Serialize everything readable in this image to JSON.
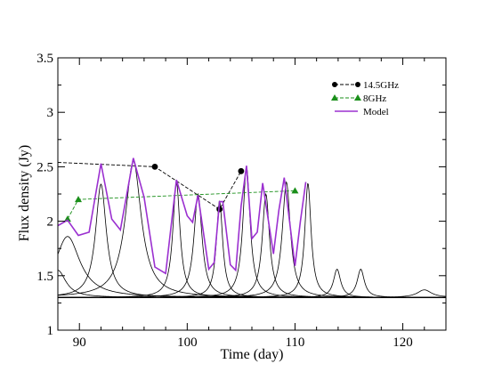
{
  "chart_data": {
    "type": "line",
    "title": "",
    "xlabel": "Time (day)",
    "ylabel": "Flux density (Jy)",
    "xlim": [
      88,
      124
    ],
    "ylim": [
      1,
      3.5
    ],
    "x_ticks": [
      90,
      100,
      110,
      120
    ],
    "y_ticks": [
      1,
      1.5,
      2,
      2.5,
      3,
      3.5
    ],
    "x_tick_labels": [
      "90",
      "100",
      "110",
      "120"
    ],
    "y_tick_labels": [
      "1",
      "1.5",
      "2",
      "2.5",
      "3",
      "3.5"
    ],
    "grid": false,
    "legend_position": "top-right",
    "baseline": 1.3,
    "series": [
      {
        "name": "14.5GHz",
        "color": "#000000",
        "marker": "circle",
        "line_style": "dashed",
        "x": [
          88,
          97,
          103,
          105
        ],
        "y": [
          2.54,
          2.5,
          2.11,
          2.46
        ],
        "marked": [
          false,
          true,
          true,
          true
        ]
      },
      {
        "name": "8GHz",
        "color": "#1a8f1a",
        "marker": "triangle",
        "line_style": "dashed",
        "x": [
          88.9,
          89.9,
          110
        ],
        "y": [
          2.02,
          2.2,
          2.28
        ],
        "marked": [
          true,
          true,
          true
        ]
      },
      {
        "name": "Model",
        "color": "#9b30d0",
        "marker": "none",
        "line_style": "solid",
        "x": [
          88,
          88.9,
          89.9,
          90.9,
          92,
          93,
          93.8,
          95,
          96,
          97,
          98,
          99,
          100,
          100.5,
          101,
          102,
          102.5,
          103,
          103.3,
          104,
          104.5,
          105,
          105.5,
          106,
          106.5,
          107,
          108,
          108.5,
          109,
          110,
          110.5,
          111
        ],
        "y": [
          1.96,
          2.01,
          1.87,
          1.9,
          2.53,
          2.02,
          1.92,
          2.58,
          2.22,
          1.58,
          1.52,
          2.38,
          2.05,
          1.99,
          2.24,
          1.56,
          1.62,
          2.18,
          2.18,
          1.6,
          1.55,
          2.14,
          2.51,
          1.84,
          1.9,
          2.35,
          1.7,
          2.1,
          2.4,
          1.59,
          2.0,
          2.36
        ]
      }
    ],
    "components": [
      {
        "center": 88.0,
        "peak": 1.55,
        "width": 0.9
      },
      {
        "center": 88.9,
        "peak": 1.86,
        "width": 1.4
      },
      {
        "center": 92.0,
        "peak": 2.34,
        "width": 0.6
      },
      {
        "center": 95.0,
        "peak": 2.55,
        "width": 0.9
      },
      {
        "center": 99.0,
        "peak": 2.36,
        "width": 0.4
      },
      {
        "center": 101.0,
        "peak": 2.25,
        "width": 0.45
      },
      {
        "center": 103.0,
        "peak": 2.19,
        "width": 0.35
      },
      {
        "center": 105.5,
        "peak": 2.5,
        "width": 0.4
      },
      {
        "center": 107.3,
        "peak": 2.25,
        "width": 0.4
      },
      {
        "center": 109.2,
        "peak": 2.36,
        "width": 0.45
      },
      {
        "center": 111.2,
        "peak": 2.35,
        "width": 0.35
      },
      {
        "center": 113.9,
        "peak": 1.56,
        "width": 0.4
      },
      {
        "center": 116.1,
        "peak": 1.56,
        "width": 0.4
      },
      {
        "center": 122.0,
        "peak": 1.37,
        "width": 0.8
      }
    ]
  }
}
